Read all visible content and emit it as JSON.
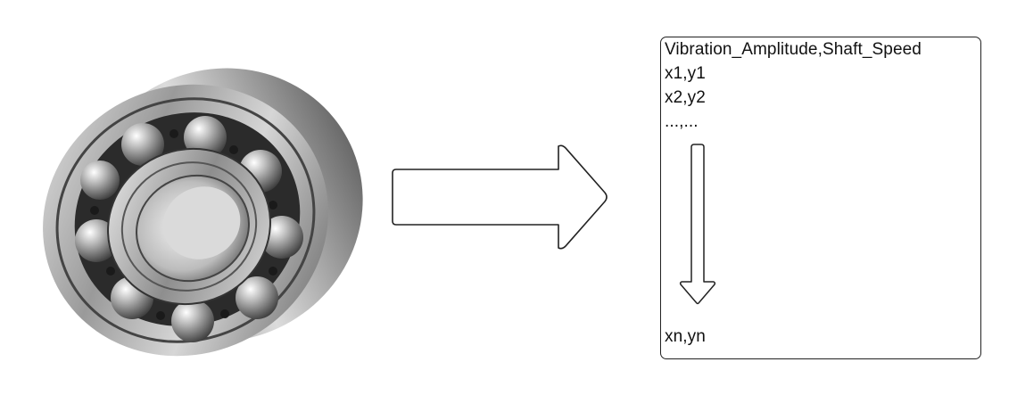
{
  "image": {
    "subject": "ball-bearing"
  },
  "data_table": {
    "header": "Vibration_Amplitude,Shaft_Speed",
    "rows": [
      "x1,y1",
      "x2,y2",
      "...,..."
    ],
    "last_row": "xn,yn"
  },
  "colors": {
    "outline": "#222222",
    "background": "#ffffff"
  }
}
